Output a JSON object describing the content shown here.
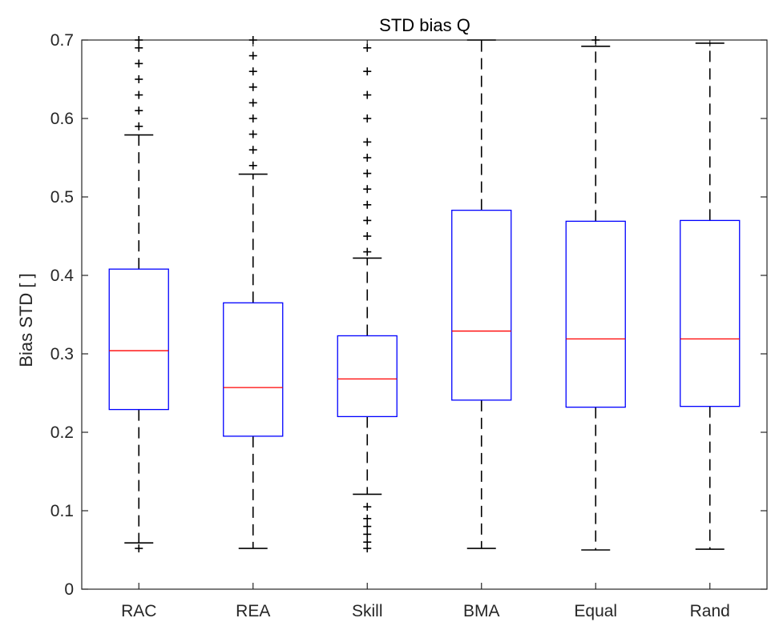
{
  "chart_data": {
    "type": "boxplot",
    "title": "STD bias Q",
    "ylabel": "Bias STD [ ]",
    "xlabel": "",
    "ylim": [
      0,
      0.7
    ],
    "yticks": [
      0,
      0.1,
      0.2,
      0.3,
      0.4,
      0.5,
      0.6,
      0.7
    ],
    "ytick_labels": [
      "0",
      "0.1",
      "0.2",
      "0.3",
      "0.4",
      "0.5",
      "0.6",
      "0.7"
    ],
    "grid": false,
    "categories": [
      "RAC",
      "REA",
      "Skill",
      "BMA",
      "Equal",
      "Rand"
    ],
    "boxes": [
      {
        "name": "RAC",
        "whisker_low": 0.059,
        "q1": 0.229,
        "median": 0.304,
        "q3": 0.408,
        "whisker_high": 0.579,
        "outliers_high": [
          0.59,
          0.61,
          0.63,
          0.65,
          0.67,
          0.69,
          0.7
        ],
        "outliers_low": [
          0.052
        ]
      },
      {
        "name": "REA",
        "whisker_low": 0.052,
        "q1": 0.195,
        "median": 0.257,
        "q3": 0.365,
        "whisker_high": 0.529,
        "outliers_high": [
          0.54,
          0.56,
          0.58,
          0.6,
          0.62,
          0.64,
          0.66,
          0.68,
          0.7
        ],
        "outliers_low": []
      },
      {
        "name": "Skill",
        "whisker_low": 0.121,
        "q1": 0.22,
        "median": 0.268,
        "q3": 0.323,
        "whisker_high": 0.422,
        "outliers_high": [
          0.43,
          0.45,
          0.47,
          0.49,
          0.51,
          0.53,
          0.55,
          0.57,
          0.6,
          0.63,
          0.66,
          0.69
        ],
        "outliers_low": [
          0.052,
          0.06,
          0.07,
          0.08,
          0.09,
          0.105
        ]
      },
      {
        "name": "BMA",
        "whisker_low": 0.052,
        "q1": 0.241,
        "median": 0.329,
        "q3": 0.483,
        "whisker_high": 0.7,
        "outliers_high": [],
        "outliers_low": []
      },
      {
        "name": "Equal",
        "whisker_low": 0.05,
        "q1": 0.232,
        "median": 0.319,
        "q3": 0.469,
        "whisker_high": 0.692,
        "outliers_high": [
          0.7
        ],
        "outliers_low": []
      },
      {
        "name": "Rand",
        "whisker_low": 0.051,
        "q1": 0.233,
        "median": 0.319,
        "q3": 0.47,
        "whisker_high": 0.696,
        "outliers_high": [],
        "outliers_low": []
      }
    ],
    "colors": {
      "box": "#0000ff",
      "median": "#ff0000",
      "whisker": "#000000",
      "outlier": "#000000",
      "axes": "#262626"
    }
  }
}
